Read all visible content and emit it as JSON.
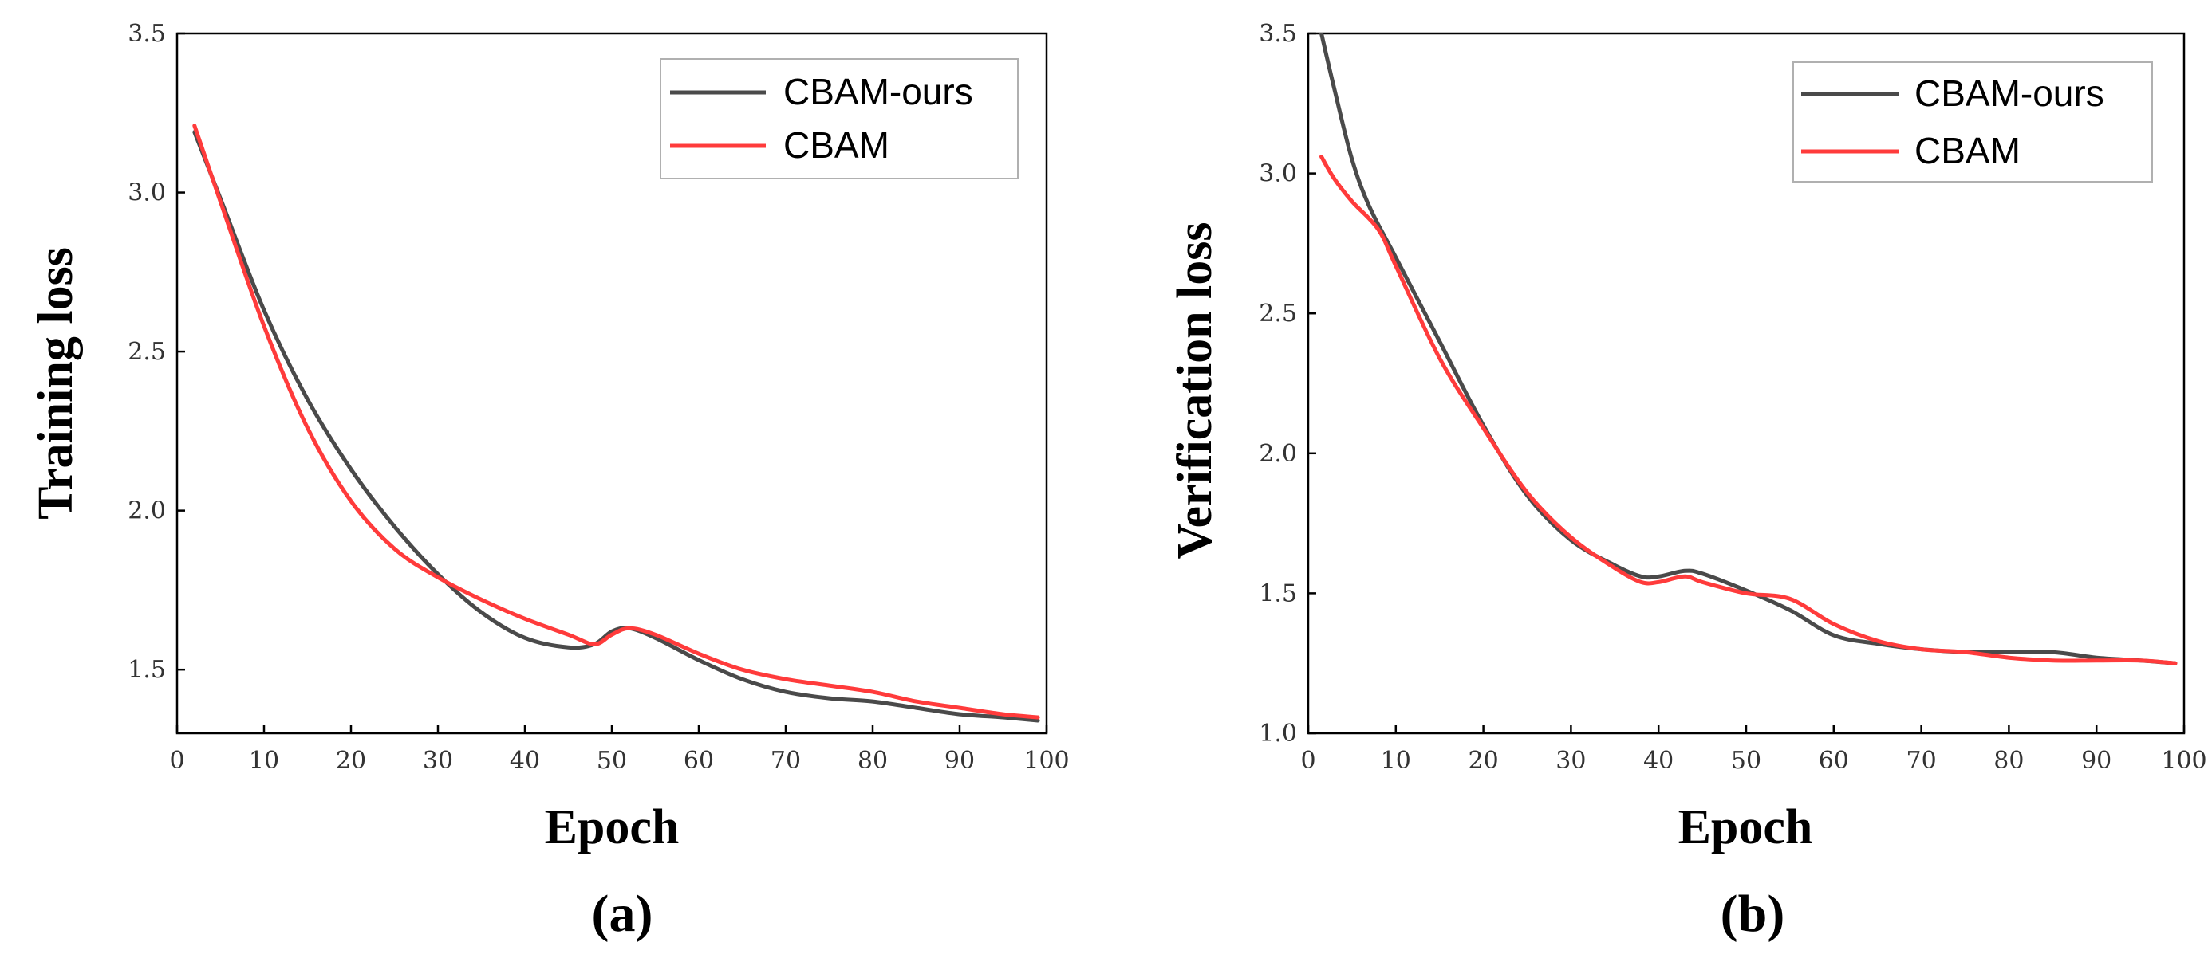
{
  "chart_data": [
    {
      "type": "line",
      "panel_label": "(a)",
      "xlabel": "Epoch",
      "ylabel": "Training loss",
      "xlim": [
        0,
        100
      ],
      "ylim": [
        1.3,
        3.5
      ],
      "xticks": [
        0,
        10,
        20,
        30,
        40,
        50,
        60,
        70,
        80,
        90,
        100
      ],
      "yticks": [
        1.5,
        2.0,
        2.5,
        3.0,
        3.5
      ],
      "ytick_labels": [
        "1.5",
        "2.0",
        "2.5",
        "3.0",
        "3.5"
      ],
      "legend_position": "top-right",
      "series": [
        {
          "name": "CBAM-ours",
          "color": "#4a4a4a",
          "x": [
            2,
            5,
            10,
            15,
            20,
            25,
            30,
            35,
            40,
            45,
            48,
            50,
            52,
            55,
            60,
            65,
            70,
            75,
            80,
            85,
            90,
            95,
            99
          ],
          "y": [
            3.19,
            2.98,
            2.63,
            2.35,
            2.13,
            1.95,
            1.8,
            1.68,
            1.6,
            1.57,
            1.58,
            1.62,
            1.63,
            1.6,
            1.53,
            1.47,
            1.43,
            1.41,
            1.4,
            1.38,
            1.36,
            1.35,
            1.34
          ]
        },
        {
          "name": "CBAM",
          "color": "#ff3b3b",
          "x": [
            2,
            5,
            10,
            15,
            20,
            25,
            30,
            35,
            40,
            45,
            48,
            50,
            52,
            55,
            60,
            65,
            70,
            75,
            80,
            85,
            90,
            95,
            99
          ],
          "y": [
            3.21,
            2.97,
            2.58,
            2.26,
            2.03,
            1.88,
            1.79,
            1.72,
            1.66,
            1.61,
            1.58,
            1.61,
            1.63,
            1.61,
            1.55,
            1.5,
            1.47,
            1.45,
            1.43,
            1.4,
            1.38,
            1.36,
            1.35
          ]
        }
      ]
    },
    {
      "type": "line",
      "panel_label": "(b)",
      "xlabel": "Epoch",
      "ylabel": "Verification loss",
      "xlim": [
        0,
        100
      ],
      "ylim": [
        1.0,
        3.5
      ],
      "xticks": [
        0,
        10,
        20,
        30,
        40,
        50,
        60,
        70,
        80,
        90,
        100
      ],
      "yticks": [
        1.0,
        1.5,
        2.0,
        2.5,
        3.0,
        3.5
      ],
      "ytick_labels": [
        "1.0",
        "1.5",
        "2.0",
        "2.5",
        "3.0",
        "3.5"
      ],
      "legend_position": "top-right",
      "series": [
        {
          "name": "CBAM-ours",
          "color": "#4a4a4a",
          "x": [
            1.5,
            3,
            5,
            7,
            10,
            15,
            20,
            25,
            30,
            35,
            38,
            40,
            43,
            45,
            50,
            55,
            60,
            65,
            70,
            75,
            80,
            85,
            90,
            95,
            99
          ],
          "y": [
            3.5,
            3.3,
            3.05,
            2.88,
            2.7,
            2.4,
            2.1,
            1.85,
            1.69,
            1.6,
            1.56,
            1.56,
            1.58,
            1.57,
            1.51,
            1.44,
            1.35,
            1.32,
            1.3,
            1.29,
            1.29,
            1.29,
            1.27,
            1.26,
            1.25
          ]
        },
        {
          "name": "CBAM",
          "color": "#ff3b3b",
          "x": [
            1.5,
            3,
            5,
            8,
            10,
            15,
            20,
            25,
            30,
            35,
            38,
            40,
            43,
            45,
            50,
            55,
            60,
            65,
            70,
            75,
            80,
            85,
            90,
            95,
            99
          ],
          "y": [
            3.06,
            2.98,
            2.9,
            2.8,
            2.67,
            2.34,
            2.09,
            1.86,
            1.7,
            1.59,
            1.54,
            1.54,
            1.56,
            1.54,
            1.5,
            1.48,
            1.39,
            1.33,
            1.3,
            1.29,
            1.27,
            1.26,
            1.26,
            1.26,
            1.25
          ]
        }
      ]
    }
  ]
}
